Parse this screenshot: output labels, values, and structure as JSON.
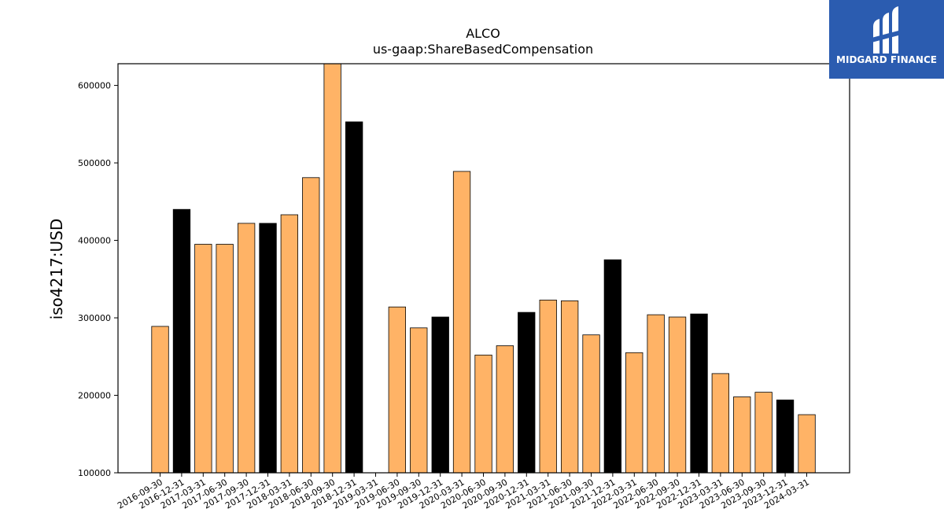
{
  "brand": {
    "name": "MIDGARD FINANCE",
    "bg_color": "#2b5cb0"
  },
  "chart_data": {
    "type": "bar",
    "title": "ALCO",
    "subtitle": "us-gaap:ShareBasedCompensation",
    "xlabel": "",
    "ylabel": "iso4217:USD",
    "ylim": [
      100000,
      628000
    ],
    "yticks": [
      100000,
      200000,
      300000,
      400000,
      500000,
      600000
    ],
    "grid": false,
    "legend": "none",
    "colors": {
      "quarter": "#ffb366",
      "year_end": "#000000"
    },
    "categories": [
      "2016-09-30",
      "2016-12-31",
      "2017-03-31",
      "2017-06-30",
      "2017-09-30",
      "2017-12-31",
      "2018-03-31",
      "2018-06-30",
      "2018-09-30",
      "2018-12-31",
      "2019-03-31",
      "2019-06-30",
      "2019-09-30",
      "2019-12-31",
      "2020-03-31",
      "2020-06-30",
      "2020-09-30",
      "2020-12-31",
      "2021-03-31",
      "2021-06-30",
      "2021-09-30",
      "2021-12-31",
      "2022-03-31",
      "2022-06-30",
      "2022-09-30",
      "2022-12-31",
      "2023-03-31",
      "2023-06-30",
      "2023-09-30",
      "2023-12-31",
      "2024-03-31"
    ],
    "values": [
      289000,
      440000,
      395000,
      395000,
      422000,
      422000,
      433000,
      481000,
      630000,
      553000,
      null,
      314000,
      287000,
      301000,
      489000,
      252000,
      264000,
      307000,
      323000,
      322000,
      278000,
      375000,
      255000,
      304000,
      301000,
      305000,
      228000,
      198000,
      204000,
      194000,
      175000
    ],
    "year_end": [
      false,
      true,
      false,
      false,
      false,
      true,
      false,
      false,
      false,
      true,
      false,
      false,
      false,
      true,
      false,
      false,
      false,
      true,
      false,
      false,
      false,
      true,
      false,
      false,
      false,
      true,
      false,
      false,
      false,
      true,
      false
    ]
  }
}
